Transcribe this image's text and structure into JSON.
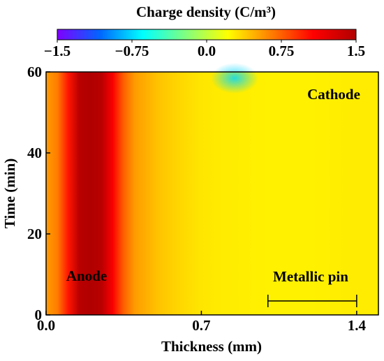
{
  "chart_data": {
    "type": "heatmap",
    "colorbar": {
      "title": "Charge density (C/m³)",
      "ticks": [
        -1.5,
        -0.75,
        0.0,
        0.75,
        1.5
      ],
      "tick_labels": [
        "−1.5",
        "−0.75",
        "0.0",
        "0.75",
        "1.5"
      ],
      "range": [
        -1.5,
        1.5
      ],
      "colors": [
        "#8000ff",
        "#0066ff",
        "#00ffff",
        "#80ff80",
        "#ffff00",
        "#ff8000",
        "#ff0000",
        "#b00000"
      ]
    },
    "xlabel": "Thickness (mm)",
    "ylabel": "Time (min)",
    "xlim": [
      0.0,
      1.4
    ],
    "ylim": [
      0,
      60
    ],
    "x_ticks": [
      0.0,
      0.7,
      1.4
    ],
    "x_tick_labels": [
      "0.0",
      "0.7",
      "1.4"
    ],
    "y_ticks": [
      0,
      20,
      40,
      60
    ],
    "y_tick_labels": [
      "0",
      "20",
      "40",
      "60"
    ],
    "annotations": {
      "anode": "Anode",
      "cathode": "Cathode",
      "metallic_pin": "Metallic pin"
    },
    "metallic_pin_span_mm": [
      1.0,
      1.4
    ],
    "profile": {
      "note_x_mm": [
        0.0,
        0.05,
        0.1,
        0.15,
        0.2,
        0.25,
        0.3,
        0.35,
        0.4,
        0.5,
        0.6,
        0.7,
        0.8,
        0.9,
        1.0,
        1.1,
        1.2,
        1.3,
        1.4
      ],
      "charge_density": [
        0.55,
        0.65,
        1.0,
        1.45,
        1.5,
        1.45,
        1.1,
        0.75,
        0.55,
        0.42,
        0.35,
        0.3,
        0.28,
        0.27,
        0.26,
        0.26,
        0.26,
        0.27,
        0.28
      ]
    }
  }
}
